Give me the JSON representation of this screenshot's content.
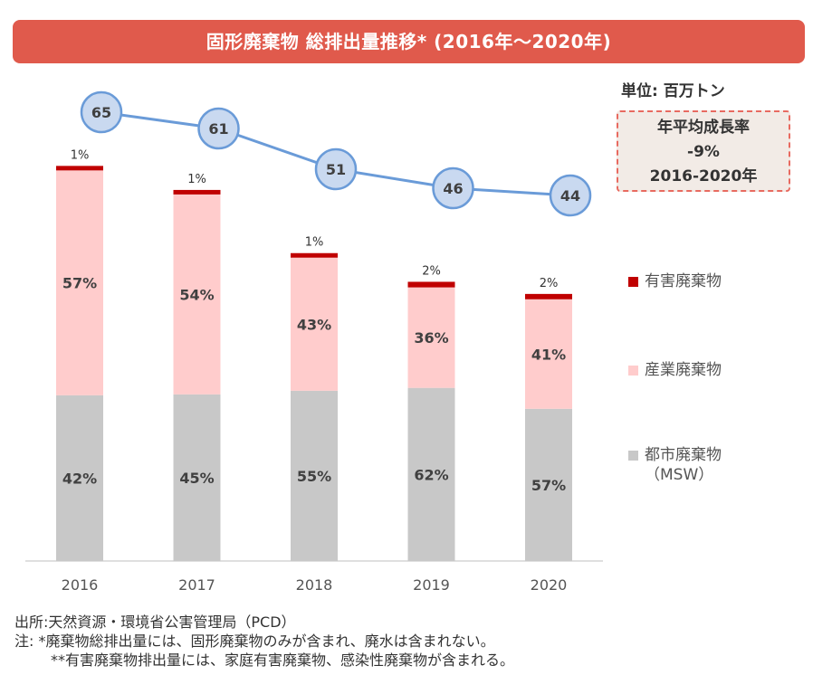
{
  "title": "固形廃棄物 総排出量推移* (2016年〜2020年)",
  "unit_label": "単位: 百万トン",
  "cagr_box": {
    "line1": "年平均成長率",
    "line2": "-9%",
    "line3": "2016-2020年"
  },
  "legend": [
    {
      "label": "有害廃棄物",
      "color": "#c00000"
    },
    {
      "label": "産業廃棄物",
      "color": "#ffcccc"
    },
    {
      "label": "都市廃棄物\n（MSW）",
      "color": "#c8c8c8"
    }
  ],
  "colors": {
    "hazardous": "#c00000",
    "industrial": "#ffcccc",
    "municipal": "#c8c8c8",
    "line": "#6a9bd8",
    "bubble_fill": "#c9d9f0"
  },
  "chart_data": {
    "type": "bar",
    "stacked": true,
    "categories": [
      "2016",
      "2017",
      "2018",
      "2019",
      "2020"
    ],
    "series": [
      {
        "name": "都市廃棄物（MSW）",
        "values": [
          42,
          45,
          55,
          62,
          57
        ],
        "labels": [
          "42%",
          "45%",
          "55%",
          "62%",
          "57%"
        ]
      },
      {
        "name": "産業廃棄物",
        "values": [
          57,
          54,
          43,
          36,
          41
        ],
        "labels": [
          "57%",
          "54%",
          "43%",
          "36%",
          "41%"
        ]
      },
      {
        "name": "有害廃棄物",
        "values": [
          1,
          1,
          1,
          2,
          2
        ],
        "labels": [
          "1%",
          "1%",
          "1%",
          "2%",
          "2%"
        ]
      }
    ],
    "totals": {
      "values": [
        65,
        61,
        51,
        46,
        44
      ],
      "labels": [
        "65",
        "61",
        "51",
        "46",
        "44"
      ]
    }
  },
  "footnotes": {
    "source": "出所:天然資源・環境省公害管理局（PCD）",
    "note1": "注: *廃棄物総排出量には、固形廃棄物のみが含まれ、廃水は含まれない。",
    "note2": "**有害廃棄物排出量には、家庭有害廃棄物、感染性廃棄物が含まれる。"
  }
}
